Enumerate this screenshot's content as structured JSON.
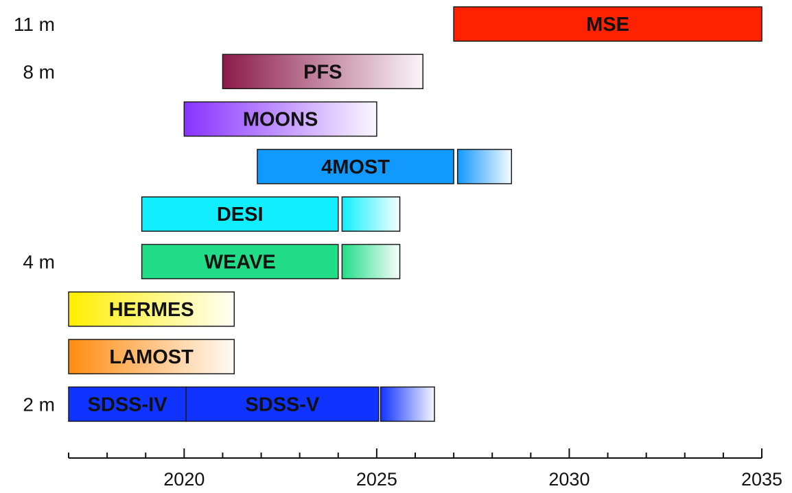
{
  "chart_data": {
    "type": "gantt",
    "title": "",
    "xlabel": "",
    "ylabel": "",
    "xlim": [
      2017,
      2035
    ],
    "x_ticks": [
      2020,
      2025,
      2030,
      2035
    ],
    "x_minor_step": 1,
    "y_labels": [
      {
        "row": 0,
        "text": "11 m"
      },
      {
        "row": 1,
        "text": "8 m"
      },
      {
        "row": 5,
        "text": "4 m"
      },
      {
        "row": 8,
        "text": "2 m"
      }
    ],
    "rows": [
      {
        "label": "MSE",
        "segments": [
          {
            "label": "MSE",
            "start": 2027.0,
            "end": 2035.0,
            "color": "#ff2200",
            "fade": false
          }
        ]
      },
      {
        "label": "PFS",
        "segments": [
          {
            "label": "PFS",
            "start": 2021.0,
            "end": 2026.2,
            "color": "#8c1a4a",
            "fade": true
          }
        ]
      },
      {
        "label": "MOONS",
        "segments": [
          {
            "label": "MOONS",
            "start": 2020.0,
            "end": 2025.0,
            "color": "#8833ff",
            "fade": true
          }
        ]
      },
      {
        "label": "4MOST",
        "segments": [
          {
            "label": "4MOST",
            "start": 2021.9,
            "end": 2027.0,
            "color": "#1199ff",
            "fade": false
          },
          {
            "label": "",
            "start": 2027.1,
            "end": 2028.5,
            "color": "#1199ff",
            "fade": true
          }
        ]
      },
      {
        "label": "DESI",
        "segments": [
          {
            "label": "DESI",
            "start": 2018.9,
            "end": 2024.0,
            "color": "#11eeff",
            "fade": false
          },
          {
            "label": "",
            "start": 2024.1,
            "end": 2025.6,
            "color": "#11eeff",
            "fade": true
          }
        ]
      },
      {
        "label": "WEAVE",
        "segments": [
          {
            "label": "WEAVE",
            "start": 2018.9,
            "end": 2024.0,
            "color": "#22dd88",
            "fade": false
          },
          {
            "label": "",
            "start": 2024.1,
            "end": 2025.6,
            "color": "#22dd88",
            "fade": true
          }
        ]
      },
      {
        "label": "HERMES",
        "segments": [
          {
            "label": "HERMES",
            "start": 2017.0,
            "end": 2021.3,
            "color": "#ffee00",
            "fade": true
          }
        ]
      },
      {
        "label": "LAMOST",
        "segments": [
          {
            "label": "LAMOST",
            "start": 2017.0,
            "end": 2021.3,
            "color": "#ff8c11",
            "fade": true
          }
        ]
      },
      {
        "label": "SDSS",
        "segments": [
          {
            "label": "SDSS-IV",
            "start": 2017.0,
            "end": 2020.05,
            "color": "#1133ff",
            "fade": false
          },
          {
            "label": "SDSS-V",
            "start": 2020.05,
            "end": 2025.05,
            "color": "#1133ff",
            "fade": false
          },
          {
            "label": "",
            "start": 2025.1,
            "end": 2026.5,
            "color": "#1133ff",
            "fade": true
          }
        ]
      }
    ]
  }
}
